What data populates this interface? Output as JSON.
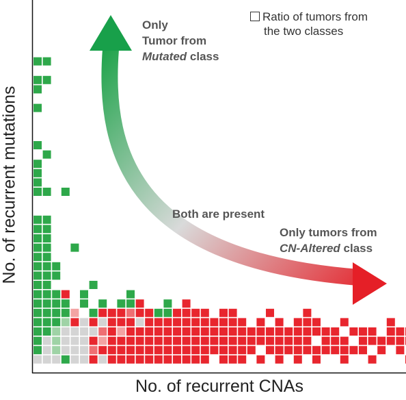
{
  "chart_data": {
    "type": "heatmap",
    "xlabel": "No. of recurrent CNAs",
    "ylabel": "No. of recurrent mutations",
    "legend": {
      "label_line1": "Ratio of tumors from",
      "label_line2": "the two classes",
      "position": "top-right"
    },
    "annotations": {
      "top_line1": "Only",
      "top_line2": "Tumor from",
      "top_line3_em": "Mutated",
      "top_line3_rest": " class",
      "middle": "Both are present",
      "right_line1": "Only tumors from",
      "right_line2_em": "CN-Altered",
      "right_line2_rest": " class"
    },
    "color_scale": {
      "mutated": "#2ea84a",
      "cn_altered": "#e8262e",
      "mixed": "#d4d4d4"
    },
    "grid": false,
    "cells": [
      [
        0,
        29,
        "G"
      ],
      [
        1,
        29,
        "G"
      ],
      [
        0,
        27,
        "G"
      ],
      [
        1,
        27,
        "G"
      ],
      [
        0,
        26,
        "G"
      ],
      [
        0,
        24,
        "G"
      ],
      [
        0,
        20,
        "G"
      ],
      [
        1,
        19,
        "G"
      ],
      [
        0,
        18,
        "G"
      ],
      [
        0,
        17,
        "G"
      ],
      [
        0,
        16,
        "G"
      ],
      [
        0,
        15,
        "G"
      ],
      [
        1,
        15,
        "G"
      ],
      [
        3,
        15,
        "G"
      ],
      [
        0,
        12,
        "G"
      ],
      [
        1,
        12,
        "G"
      ],
      [
        0,
        11,
        "G"
      ],
      [
        1,
        11,
        "G"
      ],
      [
        0,
        10,
        "G"
      ],
      [
        1,
        10,
        "G"
      ],
      [
        0,
        9,
        "G"
      ],
      [
        1,
        9,
        "G"
      ],
      [
        4,
        9,
        "G"
      ],
      [
        0,
        8,
        "G"
      ],
      [
        1,
        8,
        "G"
      ],
      [
        0,
        7,
        "G"
      ],
      [
        1,
        7,
        "G"
      ],
      [
        2,
        7,
        "G"
      ],
      [
        0,
        6,
        "G"
      ],
      [
        1,
        6,
        "G"
      ],
      [
        2,
        6,
        "G"
      ],
      [
        0,
        5,
        "G"
      ],
      [
        1,
        5,
        "G"
      ],
      [
        6,
        5,
        "G"
      ],
      [
        0,
        4,
        "G"
      ],
      [
        1,
        4,
        "G"
      ],
      [
        2,
        4,
        "G"
      ],
      [
        3,
        4,
        "R"
      ],
      [
        5,
        4,
        "G"
      ],
      [
        10,
        4,
        "G"
      ],
      [
        0,
        3,
        "G"
      ],
      [
        1,
        3,
        "G"
      ],
      [
        2,
        3,
        "G"
      ],
      [
        3,
        3,
        "G"
      ],
      [
        5,
        3,
        "G"
      ],
      [
        7,
        3,
        "G"
      ],
      [
        9,
        3,
        "G"
      ],
      [
        10,
        3,
        "G"
      ],
      [
        11,
        3,
        "R"
      ],
      [
        14,
        3,
        "G"
      ],
      [
        16,
        3,
        "R"
      ],
      [
        0,
        2,
        "G"
      ],
      [
        1,
        2,
        "G"
      ],
      [
        2,
        2,
        "G"
      ],
      [
        3,
        2,
        "G"
      ],
      [
        4,
        2,
        "Rl"
      ],
      [
        6,
        2,
        "G"
      ],
      [
        7,
        2,
        "R"
      ],
      [
        8,
        2,
        "R"
      ],
      [
        9,
        2,
        "R"
      ],
      [
        10,
        2,
        "Rp"
      ],
      [
        11,
        2,
        "R"
      ],
      [
        12,
        2,
        "R"
      ],
      [
        13,
        2,
        "G"
      ],
      [
        14,
        2,
        "G"
      ],
      [
        15,
        2,
        "R"
      ],
      [
        16,
        2,
        "R"
      ],
      [
        17,
        2,
        "R"
      ],
      [
        18,
        2,
        "R"
      ],
      [
        20,
        2,
        "R"
      ],
      [
        21,
        2,
        "R"
      ],
      [
        25,
        2,
        "R"
      ],
      [
        29,
        2,
        "R"
      ],
      [
        0,
        1,
        "G"
      ],
      [
        1,
        1,
        "G"
      ],
      [
        2,
        1,
        "G"
      ],
      [
        3,
        1,
        "Gl"
      ],
      [
        4,
        1,
        "R"
      ],
      [
        5,
        1,
        "Gy"
      ],
      [
        6,
        1,
        "R"
      ],
      [
        7,
        1,
        "Gy"
      ],
      [
        8,
        1,
        "R"
      ],
      [
        9,
        1,
        "R"
      ],
      [
        10,
        1,
        "R"
      ],
      [
        11,
        1,
        "Gy"
      ],
      [
        12,
        1,
        "R"
      ],
      [
        13,
        1,
        "R"
      ],
      [
        14,
        1,
        "R"
      ],
      [
        15,
        1,
        "R"
      ],
      [
        16,
        1,
        "R"
      ],
      [
        17,
        1,
        "R"
      ],
      [
        18,
        1,
        "R"
      ],
      [
        19,
        1,
        "R"
      ],
      [
        20,
        1,
        "R"
      ],
      [
        21,
        1,
        "R"
      ],
      [
        22,
        1,
        "R"
      ],
      [
        24,
        1,
        "R"
      ],
      [
        26,
        1,
        "R"
      ],
      [
        28,
        1,
        "R"
      ],
      [
        29,
        1,
        "R"
      ],
      [
        30,
        1,
        "R"
      ],
      [
        33,
        1,
        "R"
      ],
      [
        38,
        1,
        "R"
      ],
      [
        0,
        0,
        "G"
      ],
      [
        1,
        0,
        "G"
      ],
      [
        2,
        0,
        "Gl"
      ],
      [
        3,
        0,
        "Gy"
      ],
      [
        4,
        0,
        "Gy"
      ],
      [
        5,
        0,
        "Gy"
      ],
      [
        6,
        0,
        "Gy"
      ],
      [
        7,
        0,
        "Rp"
      ],
      [
        8,
        0,
        "R"
      ],
      [
        9,
        0,
        "Rl"
      ],
      [
        10,
        0,
        "R"
      ],
      [
        11,
        0,
        "R"
      ],
      [
        12,
        0,
        "R"
      ],
      [
        13,
        0,
        "R"
      ],
      [
        14,
        0,
        "R"
      ],
      [
        15,
        0,
        "R"
      ],
      [
        16,
        0,
        "R"
      ],
      [
        17,
        0,
        "R"
      ],
      [
        18,
        0,
        "R"
      ],
      [
        19,
        0,
        "R"
      ],
      [
        20,
        0,
        "R"
      ],
      [
        21,
        0,
        "R"
      ],
      [
        22,
        0,
        "R"
      ],
      [
        23,
        0,
        "R"
      ],
      [
        24,
        0,
        "R"
      ],
      [
        25,
        0,
        "R"
      ],
      [
        26,
        0,
        "R"
      ],
      [
        27,
        0,
        "R"
      ],
      [
        28,
        0,
        "R"
      ],
      [
        29,
        0,
        "R"
      ],
      [
        30,
        0,
        "R"
      ],
      [
        31,
        0,
        "R"
      ],
      [
        32,
        0,
        "R"
      ],
      [
        34,
        0,
        "R"
      ],
      [
        35,
        0,
        "R"
      ],
      [
        36,
        0,
        "R"
      ],
      [
        38,
        0,
        "R"
      ],
      [
        39,
        0,
        "R"
      ],
      [
        40,
        0,
        "R"
      ],
      [
        41,
        0,
        "R"
      ],
      [
        42,
        0,
        "R"
      ],
      [
        44,
        0,
        "R"
      ],
      [
        45,
        0,
        "R"
      ],
      [
        46,
        0,
        "R"
      ],
      [
        47,
        0,
        "R"
      ],
      [
        0,
        -1,
        "G"
      ],
      [
        1,
        -1,
        "Gy"
      ],
      [
        2,
        -1,
        "Gl"
      ],
      [
        3,
        -1,
        "Gy"
      ],
      [
        4,
        -1,
        "Gy"
      ],
      [
        5,
        -1,
        "Gy"
      ],
      [
        6,
        -1,
        "R"
      ],
      [
        7,
        -1,
        "Rl"
      ],
      [
        8,
        -1,
        "R"
      ],
      [
        9,
        -1,
        "R"
      ],
      [
        10,
        -1,
        "R"
      ],
      [
        11,
        -1,
        "R"
      ],
      [
        12,
        -1,
        "R"
      ],
      [
        13,
        -1,
        "R"
      ],
      [
        14,
        -1,
        "R"
      ],
      [
        15,
        -1,
        "R"
      ],
      [
        16,
        -1,
        "R"
      ],
      [
        17,
        -1,
        "R"
      ],
      [
        18,
        -1,
        "R"
      ],
      [
        19,
        -1,
        "R"
      ],
      [
        20,
        -1,
        "R"
      ],
      [
        21,
        -1,
        "R"
      ],
      [
        22,
        -1,
        "R"
      ],
      [
        23,
        -1,
        "R"
      ],
      [
        24,
        -1,
        "R"
      ],
      [
        25,
        -1,
        "R"
      ],
      [
        26,
        -1,
        "R"
      ],
      [
        27,
        -1,
        "R"
      ],
      [
        28,
        -1,
        "R"
      ],
      [
        29,
        -1,
        "R"
      ],
      [
        31,
        -1,
        "R"
      ],
      [
        32,
        -1,
        "R"
      ],
      [
        33,
        -1,
        "R"
      ],
      [
        35,
        -1,
        "R"
      ],
      [
        36,
        -1,
        "R"
      ],
      [
        37,
        -1,
        "R"
      ],
      [
        38,
        -1,
        "R"
      ],
      [
        39,
        -1,
        "R"
      ],
      [
        40,
        -1,
        "R"
      ],
      [
        41,
        -1,
        "R"
      ],
      [
        42,
        -1,
        "R"
      ],
      [
        43,
        -1,
        "R"
      ],
      [
        45,
        -1,
        "R"
      ],
      [
        46,
        -1,
        "R"
      ],
      [
        47,
        -1,
        "R"
      ],
      [
        0,
        -2,
        "G"
      ],
      [
        1,
        -2,
        "Gy"
      ],
      [
        2,
        -2,
        "Gl"
      ],
      [
        3,
        -2,
        "Gy"
      ],
      [
        4,
        -2,
        "Gy"
      ],
      [
        5,
        -2,
        "Gy"
      ],
      [
        6,
        -2,
        "Rp"
      ],
      [
        7,
        -2,
        "R"
      ],
      [
        8,
        -2,
        "R"
      ],
      [
        9,
        -2,
        "R"
      ],
      [
        10,
        -2,
        "R"
      ],
      [
        11,
        -2,
        "R"
      ],
      [
        12,
        -2,
        "R"
      ],
      [
        13,
        -2,
        "R"
      ],
      [
        14,
        -2,
        "R"
      ],
      [
        15,
        -2,
        "R"
      ],
      [
        16,
        -2,
        "R"
      ],
      [
        17,
        -2,
        "R"
      ],
      [
        18,
        -2,
        "R"
      ],
      [
        19,
        -2,
        "R"
      ],
      [
        20,
        -2,
        "R"
      ],
      [
        21,
        -2,
        "R"
      ],
      [
        22,
        -2,
        "R"
      ],
      [
        23,
        -2,
        "R"
      ],
      [
        25,
        -2,
        "R"
      ],
      [
        26,
        -2,
        "R"
      ],
      [
        27,
        -2,
        "R"
      ],
      [
        28,
        -2,
        "R"
      ],
      [
        29,
        -2,
        "R"
      ],
      [
        30,
        -2,
        "R"
      ],
      [
        31,
        -2,
        "R"
      ],
      [
        32,
        -2,
        "R"
      ],
      [
        33,
        -2,
        "R"
      ],
      [
        34,
        -2,
        "R"
      ],
      [
        35,
        -2,
        "R"
      ],
      [
        37,
        -2,
        "R"
      ],
      [
        39,
        -2,
        "R"
      ],
      [
        41,
        -2,
        "R"
      ],
      [
        43,
        -2,
        "R"
      ],
      [
        45,
        -2,
        "R"
      ],
      [
        47,
        -2,
        "R"
      ],
      [
        49,
        -2,
        "R"
      ],
      [
        51,
        -2,
        "R"
      ],
      [
        53,
        -2,
        "R"
      ],
      [
        55,
        -2,
        "R"
      ],
      [
        57,
        -2,
        "R"
      ],
      [
        59,
        -2,
        "R"
      ],
      [
        0,
        -3,
        "Gy"
      ],
      [
        1,
        -3,
        "Gy"
      ],
      [
        2,
        -3,
        "Gy"
      ],
      [
        3,
        -3,
        "G"
      ],
      [
        4,
        -3,
        "Gy"
      ],
      [
        5,
        -3,
        "Gy"
      ],
      [
        6,
        -3,
        "R"
      ],
      [
        7,
        -3,
        "Gy"
      ],
      [
        8,
        -3,
        "R"
      ],
      [
        9,
        -3,
        "R"
      ],
      [
        10,
        -3,
        "R"
      ],
      [
        11,
        -3,
        "R"
      ],
      [
        12,
        -3,
        "R"
      ],
      [
        13,
        -3,
        "R"
      ],
      [
        14,
        -3,
        "R"
      ],
      [
        15,
        -3,
        "R"
      ],
      [
        16,
        -3,
        "R"
      ],
      [
        17,
        -3,
        "R"
      ],
      [
        18,
        -3,
        "R"
      ],
      [
        20,
        -3,
        "R"
      ],
      [
        21,
        -3,
        "R"
      ],
      [
        22,
        -3,
        "R"
      ],
      [
        24,
        -3,
        "R"
      ],
      [
        26,
        -3,
        "R"
      ],
      [
        28,
        -3,
        "R"
      ],
      [
        30,
        -3,
        "R"
      ],
      [
        33,
        -3,
        "R"
      ],
      [
        36,
        -3,
        "R"
      ],
      [
        40,
        -3,
        "R"
      ]
    ]
  }
}
